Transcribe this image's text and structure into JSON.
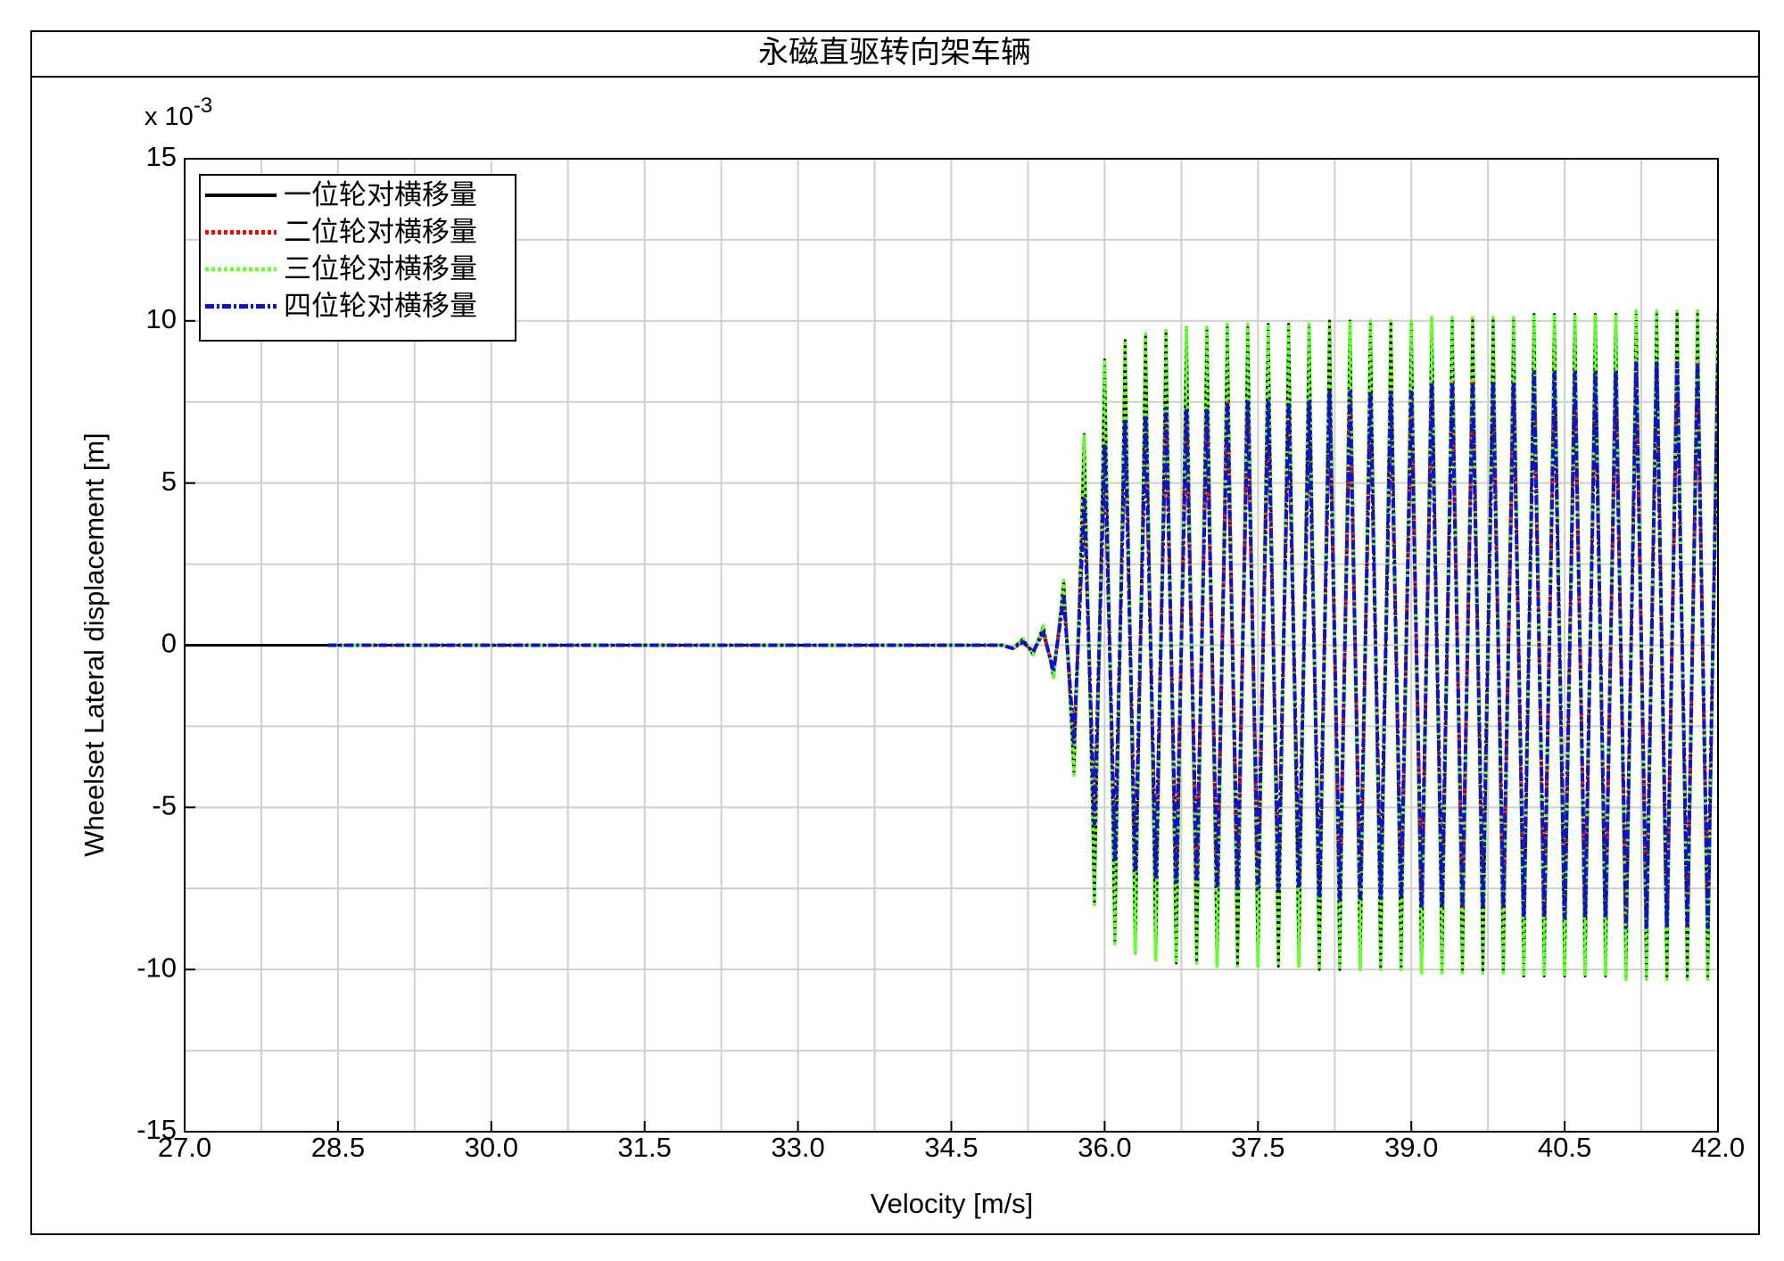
{
  "chart_data": {
    "type": "line",
    "title": "永磁直驱转向架车辆",
    "xlabel": "Velocity [m/s]",
    "ylabel": "Wheelset Lateral displacement [m]",
    "y_scale_label": "x 10",
    "y_scale_exponent": "-3",
    "xlim": [
      27.0,
      42.0
    ],
    "ylim": [
      -15,
      15
    ],
    "xticks": [
      {
        "value": 27.0,
        "label": "27.0"
      },
      {
        "value": 28.5,
        "label": "28.5"
      },
      {
        "value": 30.0,
        "label": "30.0"
      },
      {
        "value": 31.5,
        "label": "31.5"
      },
      {
        "value": 33.0,
        "label": "33.0"
      },
      {
        "value": 34.5,
        "label": "34.5"
      },
      {
        "value": 36.0,
        "label": "36.0"
      },
      {
        "value": 37.5,
        "label": "37.5"
      },
      {
        "value": 39.0,
        "label": "39.0"
      },
      {
        "value": 40.5,
        "label": "40.5"
      },
      {
        "value": 42.0,
        "label": "42.0"
      }
    ],
    "yticks": [
      -15,
      -10,
      -5,
      0,
      5,
      10,
      15
    ],
    "xminorticks": [
      27.75,
      29.25,
      30.75,
      32.25,
      33.75,
      35.25,
      36.75,
      38.25,
      39.75,
      41.25
    ],
    "yminorticks": [
      -12.5,
      -7.5,
      -2.5,
      2.5,
      7.5,
      12.5
    ],
    "grid": true,
    "legend": "upper left",
    "x": [
      27.0,
      28.4,
      34.8,
      35.0,
      35.1,
      35.2,
      35.3,
      35.4,
      35.5,
      35.6,
      35.7,
      35.8,
      35.9,
      36.0,
      36.1,
      36.2,
      36.3,
      36.4,
      36.5,
      36.6,
      36.7,
      36.8,
      36.9,
      37.0,
      37.1,
      37.2,
      37.3,
      37.4,
      37.5,
      37.6,
      37.7,
      37.8,
      37.9,
      38.0,
      38.1,
      38.2,
      38.3,
      38.4,
      38.5,
      38.6,
      38.7,
      38.8,
      38.9,
      39.0,
      39.1,
      39.2,
      39.3,
      39.4,
      39.5,
      39.6,
      39.7,
      39.8,
      39.9,
      40.0,
      40.1,
      40.2,
      40.3,
      40.4,
      40.5,
      40.6,
      40.7,
      40.8,
      40.9,
      41.0,
      41.1,
      41.2,
      41.3,
      41.4,
      41.5,
      41.6,
      41.7,
      41.8,
      41.9,
      42.0
    ],
    "series": [
      {
        "name": "一位轮对横移量",
        "color": "#000000",
        "dash": "solid",
        "values": [
          0,
          0,
          0,
          0,
          -0.1,
          0.2,
          -0.3,
          0.6,
          -1.0,
          2.0,
          -4.0,
          6.5,
          -8.0,
          8.8,
          -9.2,
          9.4,
          -9.5,
          9.6,
          -9.7,
          9.7,
          -9.8,
          9.8,
          -9.8,
          9.8,
          -9.9,
          9.9,
          -9.9,
          9.9,
          -9.9,
          9.9,
          -9.9,
          9.9,
          -9.9,
          9.9,
          -10.0,
          10.0,
          -10.0,
          10.0,
          -10.0,
          10.0,
          -10.0,
          10.0,
          -10.0,
          10.0,
          -10.1,
          10.1,
          -10.1,
          10.1,
          -10.1,
          10.1,
          -10.1,
          10.1,
          -10.1,
          10.1,
          -10.2,
          10.2,
          -10.2,
          10.2,
          -10.2,
          10.2,
          -10.2,
          10.2,
          -10.2,
          10.2,
          -10.3,
          10.3,
          -10.3,
          10.3,
          -10.3,
          10.3,
          -10.3,
          10.3,
          -10.3,
          10.3
        ]
      },
      {
        "name": "二位轮对横移量",
        "color": "#ff0000",
        "dash": "dot",
        "values": [
          null,
          0,
          0,
          0,
          -0.1,
          0.1,
          -0.2,
          0.4,
          -0.8,
          1.5,
          -3.0,
          4.5,
          -5.5,
          6.2,
          -6.6,
          6.9,
          -7.0,
          7.1,
          -7.2,
          7.3,
          -7.3,
          7.3,
          -7.3,
          7.3,
          -7.5,
          7.5,
          -7.5,
          7.5,
          -7.5,
          7.5,
          -7.5,
          7.5,
          -7.5,
          7.5,
          -7.8,
          7.8,
          -7.8,
          7.8,
          -7.8,
          7.8,
          -7.8,
          7.8,
          -7.8,
          7.8,
          -8.1,
          8.1,
          -8.1,
          8.1,
          -8.1,
          8.1,
          -8.1,
          8.1,
          -8.1,
          8.1,
          -8.4,
          8.4,
          -8.4,
          8.4,
          -8.4,
          8.4,
          -8.4,
          8.4,
          -8.4,
          8.4,
          -8.7,
          8.7,
          -8.7,
          8.7,
          -8.7,
          8.7,
          -8.7,
          8.7,
          -8.7,
          8.7
        ]
      },
      {
        "name": "三位轮对横移量",
        "color": "#66ff33",
        "dash": "dot",
        "values": [
          null,
          0,
          0,
          0,
          -0.1,
          0.2,
          -0.3,
          0.6,
          -1.0,
          2.0,
          -4.0,
          6.5,
          -8.0,
          8.8,
          -9.2,
          9.4,
          -9.5,
          9.6,
          -9.7,
          9.7,
          -9.8,
          9.8,
          -9.8,
          9.8,
          -9.9,
          9.9,
          -9.9,
          9.9,
          -9.9,
          9.9,
          -9.9,
          9.9,
          -9.9,
          9.9,
          -10.0,
          10.0,
          -10.0,
          10.0,
          -10.0,
          10.0,
          -10.0,
          10.0,
          -10.0,
          10.0,
          -10.1,
          10.1,
          -10.1,
          10.1,
          -10.1,
          10.1,
          -10.1,
          10.1,
          -10.1,
          10.1,
          -10.2,
          10.2,
          -10.2,
          10.2,
          -10.2,
          10.2,
          -10.2,
          10.2,
          -10.2,
          10.2,
          -10.3,
          10.3,
          -10.3,
          10.3,
          -10.3,
          10.3,
          -10.3,
          10.3,
          -10.3,
          10.3
        ]
      },
      {
        "name": "四位轮对横移量",
        "color": "#1010cc",
        "dash": "dashdot",
        "values": [
          null,
          0,
          0,
          0,
          -0.1,
          0.1,
          -0.2,
          0.4,
          -0.8,
          1.5,
          -3.0,
          4.5,
          -5.5,
          6.2,
          -6.6,
          6.9,
          -7.0,
          7.1,
          -7.2,
          7.3,
          -7.3,
          7.3,
          -7.3,
          7.3,
          -7.5,
          7.5,
          -7.5,
          7.5,
          -7.5,
          7.5,
          -7.5,
          7.5,
          -7.5,
          7.5,
          -7.8,
          7.8,
          -7.8,
          7.8,
          -7.8,
          7.8,
          -7.8,
          7.8,
          -7.8,
          7.8,
          -8.1,
          8.1,
          -8.1,
          8.1,
          -8.1,
          8.1,
          -8.1,
          8.1,
          -8.1,
          8.1,
          -8.4,
          8.4,
          -8.4,
          8.4,
          -8.4,
          8.4,
          -8.4,
          8.4,
          -8.4,
          8.4,
          -8.7,
          8.7,
          -8.7,
          8.7,
          -8.7,
          8.7,
          -8.7,
          8.7,
          -8.7,
          8.7
        ]
      }
    ]
  }
}
